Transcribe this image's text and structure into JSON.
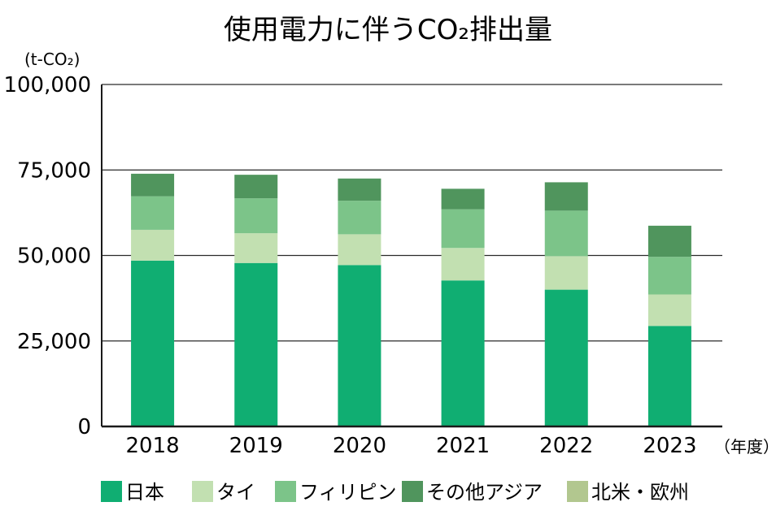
{
  "chart_data": {
    "type": "bar",
    "stacked": true,
    "title": "使用電力に伴うCO₂排出量",
    "y_unit": "(t-CO₂)",
    "x_unit": "（年度）",
    "categories": [
      "2018",
      "2019",
      "2020",
      "2021",
      "2022",
      "2023"
    ],
    "ylim": [
      0,
      100000
    ],
    "yticks": [
      {
        "value": 0,
        "label": "0"
      },
      {
        "value": 25000,
        "label": "25,000"
      },
      {
        "value": 50000,
        "label": "50,000"
      },
      {
        "value": 75000,
        "label": "75,000"
      },
      {
        "value": 100000,
        "label": "100,000"
      }
    ],
    "grid": true,
    "legend_position": "bottom",
    "series": [
      {
        "name": "日本",
        "color": "#10ae72",
        "values": [
          48500,
          47800,
          47200,
          42700,
          40000,
          29400
        ]
      },
      {
        "name": "タイ",
        "color": "#c2e0b1",
        "values": [
          9000,
          8700,
          9000,
          9500,
          9800,
          9200
        ]
      },
      {
        "name": "フィリピン",
        "color": "#7cc489",
        "values": [
          9800,
          10200,
          9800,
          11300,
          13300,
          11000
        ]
      },
      {
        "name": "その他アジア",
        "color": "#50955d",
        "values": [
          6600,
          6900,
          6500,
          6000,
          8300,
          9100
        ]
      },
      {
        "name": "北米・欧州",
        "color": "#b2c78f",
        "values": [
          0,
          0,
          0,
          0,
          0,
          0
        ]
      }
    ]
  }
}
